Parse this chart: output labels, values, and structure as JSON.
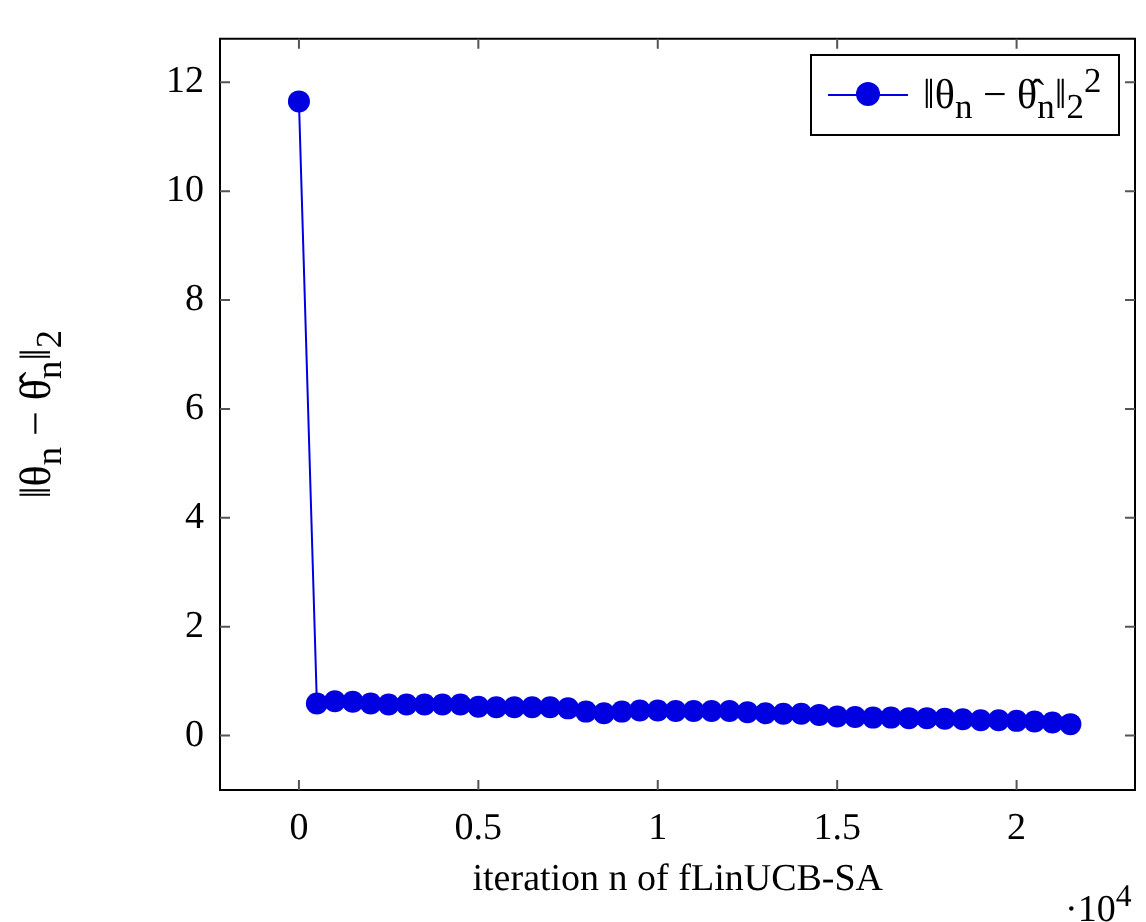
{
  "chart_data": {
    "type": "line",
    "xlabel": "iteration n of fLinUCB-SA",
    "ylabel": "‖θ$_{n}$ − θ̂$_{n}$‖$_{2}$",
    "annotations": [
      "·10$^{4}$"
    ],
    "x": [
      0,
      0.05,
      0.1,
      0.15,
      0.2,
      0.25,
      0.3,
      0.35,
      0.4,
      0.45,
      0.5,
      0.55,
      0.6,
      0.65,
      0.7,
      0.75,
      0.8,
      0.85,
      0.9,
      0.95,
      1,
      1.05,
      1.1,
      1.15,
      1.2,
      1.25,
      1.3,
      1.35,
      1.4,
      1.45,
      1.5,
      1.55,
      1.6,
      1.65,
      1.7,
      1.75,
      1.8,
      1.85,
      1.9,
      1.95,
      2,
      2.05,
      2.1,
      2.15
    ],
    "series": [
      {
        "name": "‖θ$_{n}$ − θ̂$_{n}$‖$_{2}$$^{2}$",
        "color": "#0000e0",
        "values": [
          11.65,
          0.59,
          0.63,
          0.62,
          0.59,
          0.57,
          0.57,
          0.57,
          0.57,
          0.57,
          0.53,
          0.52,
          0.52,
          0.52,
          0.52,
          0.5,
          0.44,
          0.41,
          0.44,
          0.46,
          0.46,
          0.45,
          0.45,
          0.45,
          0.45,
          0.43,
          0.41,
          0.4,
          0.4,
          0.38,
          0.35,
          0.34,
          0.33,
          0.33,
          0.32,
          0.32,
          0.31,
          0.3,
          0.28,
          0.28,
          0.27,
          0.26,
          0.24,
          0.21
        ]
      }
    ],
    "xlim": [
      -0.22,
      2.33
    ],
    "xticks": [
      0,
      0.5,
      1,
      1.5,
      2
    ],
    "ylim": [
      -1,
      12.8
    ],
    "yticks": [
      0,
      2,
      4,
      6,
      8,
      10,
      12
    ],
    "grid": false,
    "legend": "top right",
    "marker": "circle",
    "line_style": "solid"
  }
}
